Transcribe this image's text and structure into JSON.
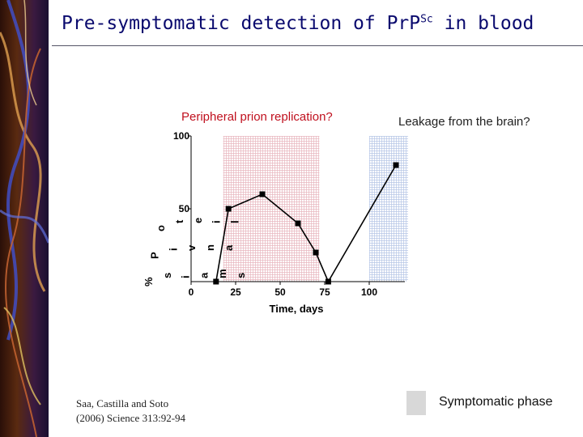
{
  "title": {
    "main": "Pre-symptomatic detection of PrP",
    "sup": "Sc",
    "tail": " in blood"
  },
  "annotations": {
    "left": "Peripheral prion replication?",
    "right": "Leakage from the brain?"
  },
  "citation": {
    "line1": "Saa, Castilla and Soto",
    "line2": "(2006) Science 313:92-94"
  },
  "legend": {
    "label": "Symptomatic phase",
    "swatch_color": "#d8d8d8"
  },
  "colors": {
    "title": "#0a0a6e",
    "left_annotation": "#c0101e",
    "pink_band": "#e8b6be",
    "blue_band": "#b6c6e6"
  },
  "chart_data": {
    "type": "line",
    "xlabel": "Time, days",
    "ylabel_fragments": [
      "%",
      "P",
      "o",
      "s",
      "i",
      "t",
      "i",
      "v",
      "e",
      "a",
      "n",
      "i",
      "m",
      "a",
      "l",
      "s"
    ],
    "xlim": [
      0,
      120
    ],
    "ylim": [
      0,
      100
    ],
    "x_ticks": [
      0,
      25,
      50,
      75,
      100
    ],
    "y_ticks": [
      50,
      100
    ],
    "bands": [
      {
        "from": 18,
        "to": 72,
        "color": "#e8b6be"
      },
      {
        "from": 100,
        "to": 122,
        "color": "#b6c6e6"
      }
    ],
    "series": [
      {
        "x": [
          14,
          21,
          40,
          60,
          70,
          77,
          115
        ],
        "y": [
          0,
          50,
          60,
          40,
          20,
          0,
          80
        ]
      }
    ],
    "grid": false
  }
}
